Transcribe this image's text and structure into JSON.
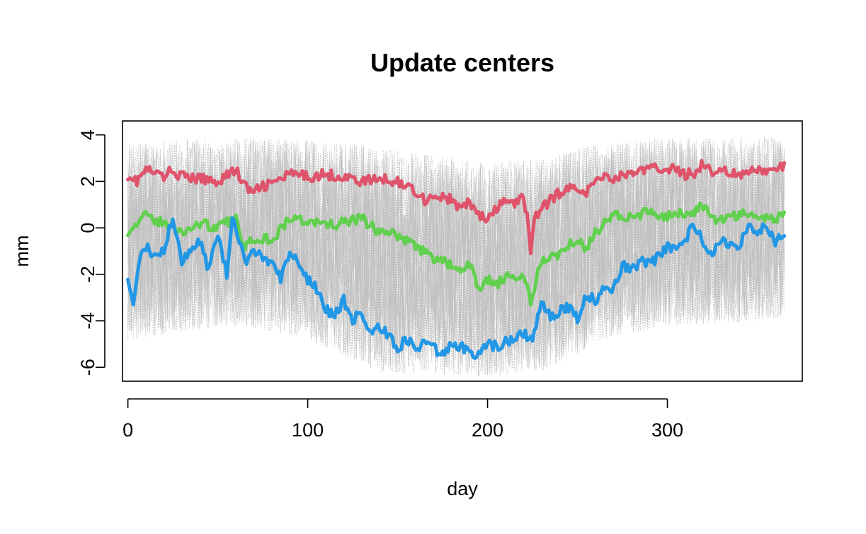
{
  "chart_data": {
    "type": "line",
    "title": "Update centers",
    "xlabel": "day",
    "ylabel": "mm",
    "xlim": [
      -3,
      375
    ],
    "ylim": [
      -6.6,
      4.6
    ],
    "x_ticks": [
      0,
      100,
      200,
      300
    ],
    "x_tick_labels": [
      "0",
      "100",
      "200",
      "300"
    ],
    "y_ticks": [
      -6,
      -4,
      -2,
      0,
      2,
      4
    ],
    "y_tick_labels": [
      "-6",
      "-4",
      "-2",
      "0",
      "2",
      "4"
    ],
    "grid": false,
    "legend": "none",
    "background_series": {
      "count": "many",
      "color": "#BEBEBE",
      "style": "dotted",
      "band_upper": [
        [
          0,
          3.6
        ],
        [
          30,
          3.8
        ],
        [
          60,
          3.9
        ],
        [
          100,
          3.8
        ],
        [
          140,
          3.5
        ],
        [
          180,
          3.0
        ],
        [
          200,
          2.8
        ],
        [
          230,
          3.0
        ],
        [
          260,
          3.6
        ],
        [
          300,
          3.9
        ],
        [
          365,
          3.9
        ]
      ],
      "band_lower": [
        [
          0,
          -4.8
        ],
        [
          30,
          -4.5
        ],
        [
          60,
          -4.2
        ],
        [
          100,
          -4.8
        ],
        [
          140,
          -6.2
        ],
        [
          180,
          -6.4
        ],
        [
          200,
          -6.4
        ],
        [
          230,
          -6.2
        ],
        [
          260,
          -5.0
        ],
        [
          300,
          -4.2
        ],
        [
          365,
          -4.0
        ]
      ]
    },
    "series": [
      {
        "color": "#DF536B",
        "x": [
          0,
          5,
          10,
          20,
          25,
          30,
          40,
          50,
          55,
          60,
          65,
          70,
          75,
          80,
          90,
          100,
          110,
          120,
          130,
          140,
          150,
          160,
          165,
          170,
          180,
          185,
          190,
          195,
          200,
          205,
          210,
          215,
          220,
          222,
          224,
          226,
          230,
          235,
          240,
          250,
          255,
          260,
          265,
          270,
          280,
          290,
          300,
          310,
          315,
          320,
          325,
          330,
          340,
          350,
          360,
          365
        ],
        "y": [
          2.3,
          2.0,
          2.5,
          2.2,
          2.5,
          2.2,
          2.1,
          2.0,
          2.3,
          2.5,
          1.8,
          1.5,
          1.8,
          1.9,
          2.3,
          2.2,
          2.3,
          2.2,
          2.0,
          2.1,
          2.0,
          1.6,
          1.2,
          1.4,
          1.2,
          0.8,
          1.1,
          0.6,
          0.3,
          0.8,
          1.2,
          1.0,
          1.3,
          0.5,
          -0.9,
          0.4,
          0.8,
          1.2,
          1.5,
          1.8,
          1.5,
          2.0,
          2.3,
          2.1,
          2.4,
          2.5,
          2.6,
          2.3,
          2.4,
          2.8,
          2.3,
          2.6,
          2.2,
          2.5,
          2.4,
          2.7
        ]
      },
      {
        "color": "#61D04F",
        "x": [
          0,
          5,
          10,
          20,
          30,
          40,
          50,
          60,
          65,
          70,
          80,
          90,
          100,
          110,
          120,
          130,
          140,
          150,
          160,
          170,
          180,
          185,
          190,
          195,
          200,
          205,
          210,
          215,
          220,
          224,
          228,
          232,
          240,
          250,
          255,
          260,
          270,
          280,
          290,
          300,
          310,
          320,
          325,
          330,
          340,
          350,
          360,
          365
        ],
        "y": [
          -0.1,
          0.2,
          0.5,
          0.2,
          -0.2,
          0.2,
          0.0,
          0.4,
          -0.8,
          -0.4,
          -0.5,
          0.4,
          0.3,
          0.1,
          0.2,
          0.4,
          -0.2,
          -0.3,
          -0.8,
          -1.3,
          -1.6,
          -2.0,
          -1.5,
          -2.7,
          -2.2,
          -2.5,
          -2.1,
          -2.3,
          -2.0,
          -3.3,
          -1.8,
          -1.3,
          -1.1,
          -0.4,
          -0.9,
          -0.2,
          0.6,
          0.4,
          0.7,
          0.5,
          0.6,
          0.9,
          0.3,
          0.4,
          0.6,
          0.5,
          0.4,
          0.6
        ]
      },
      {
        "color": "#2297E6",
        "x": [
          0,
          3,
          6,
          10,
          15,
          20,
          25,
          30,
          35,
          40,
          45,
          50,
          55,
          58,
          62,
          66,
          70,
          75,
          80,
          85,
          90,
          95,
          100,
          105,
          110,
          115,
          120,
          125,
          130,
          135,
          140,
          145,
          150,
          155,
          160,
          165,
          170,
          175,
          180,
          185,
          190,
          195,
          200,
          205,
          210,
          215,
          220,
          225,
          230,
          235,
          240,
          245,
          250,
          255,
          260,
          265,
          270,
          275,
          280,
          285,
          290,
          300,
          305,
          310,
          315,
          320,
          325,
          330,
          335,
          340,
          345,
          350,
          355,
          360,
          365
        ],
        "y": [
          -2.0,
          -3.2,
          -1.5,
          -0.8,
          -1.2,
          -0.9,
          0.5,
          -1.5,
          -1.0,
          -0.6,
          -1.8,
          -0.2,
          -2.0,
          0.6,
          -0.6,
          -1.6,
          -1.0,
          -1.3,
          -1.6,
          -2.2,
          -1.2,
          -1.4,
          -2.2,
          -2.6,
          -3.5,
          -3.8,
          -3.1,
          -4.0,
          -3.6,
          -4.6,
          -4.3,
          -4.6,
          -5.2,
          -4.8,
          -5.2,
          -5.0,
          -5.2,
          -5.5,
          -4.9,
          -5.1,
          -5.3,
          -5.5,
          -5.0,
          -5.1,
          -4.9,
          -4.7,
          -4.5,
          -4.9,
          -3.2,
          -3.8,
          -3.6,
          -3.4,
          -3.9,
          -2.9,
          -3.1,
          -2.5,
          -2.6,
          -1.6,
          -1.9,
          -1.4,
          -1.6,
          -0.8,
          -1.0,
          -0.5,
          0.2,
          -0.7,
          -1.2,
          -0.5,
          -0.8,
          -0.9,
          0.2,
          -0.3,
          0.1,
          -0.6,
          -0.4
        ]
      }
    ]
  }
}
